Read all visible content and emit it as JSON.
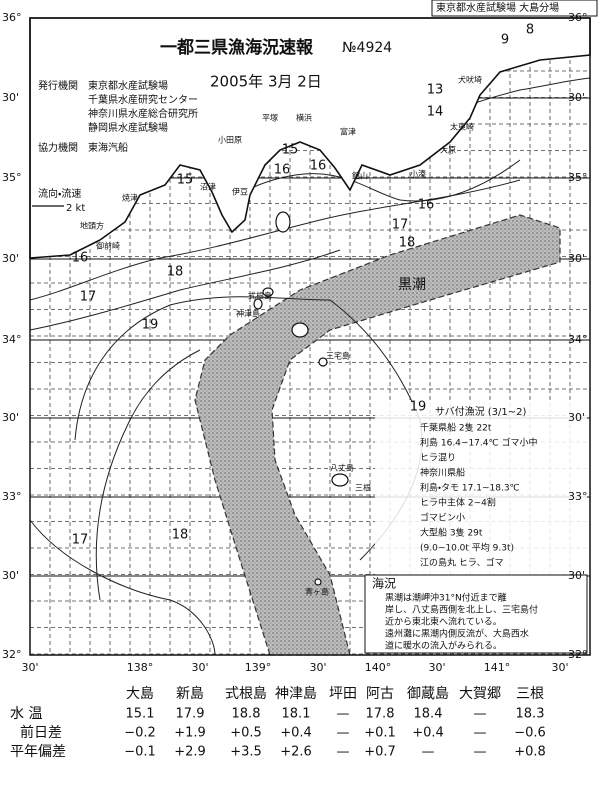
{
  "header": {
    "title": "一都三県漁海況速報",
    "issue": "№4924",
    "date": "2005年 3月 2日",
    "branch": "東京都水産試験場 大島分場"
  },
  "publishers": {
    "label": "発行機関",
    "items": [
      "東京都水産試験場",
      "千葉県水産研究センター",
      "神奈川県水産総合研究所",
      "静岡県水産試験場"
    ],
    "coop_label": "協力機関",
    "coop": "東海汽船"
  },
  "current_legend": {
    "label": "流向・流速",
    "speed": "2 kt"
  },
  "latitude_labels": [
    "36°",
    "30'",
    "35°",
    "30'",
    "34°",
    "30'",
    "33°",
    "30'",
    "32°"
  ],
  "longitude_labels": [
    "30'",
    "138°",
    "30'",
    "139°",
    "30'",
    "140°",
    "30'",
    "141°",
    "30'"
  ],
  "isotherms": [
    15,
    16,
    16,
    15,
    16,
    17,
    18,
    18,
    17,
    16,
    19,
    19,
    17,
    18,
    14,
    13,
    9,
    8
  ],
  "places": [
    "平塚",
    "横浜",
    "富津",
    "小田原",
    "館山",
    "太東崎",
    "大原",
    "犬吠埼",
    "小湊",
    "沼津",
    "伊豆",
    "焼津",
    "地頭方",
    "御前崎",
    "式根島",
    "神津島",
    "三宅島",
    "八丈島",
    "三根",
    "青ヶ島"
  ],
  "kuroshio": "黒潮",
  "catch_report": {
    "title": "サバ付漁況 (3/1~2)",
    "lines": [
      "千葉県船 2隻 22t",
      "利島 16.4~17.4℃ ゴマ小中",
      "ヒラ混り",
      "神奈川県船",
      "利島・タモ 17.1~18.3℃",
      "ヒラ中主体 2~4割",
      "ゴマビン小",
      "大型船 3隻 29t",
      "(9.0~10.0t 平均 9.3t)",
      "江の島丸 ヒラ、ゴマ"
    ]
  },
  "sea_condition": {
    "title": "海況",
    "lines": [
      "黒潮は潮岬沖31°N付近まで離",
      "岸し、八丈島西側を北上し、三宅島付",
      "近から東北東へ流れている。",
      "遠州灘に黒潮内側反流が、大島西水",
      "道に暖水の流入がみられる。"
    ]
  },
  "table": {
    "columns": [
      "大島",
      "新島",
      "式根島",
      "神津島",
      "坪田",
      "阿古",
      "御蔵島",
      "大賀郷",
      "三根"
    ],
    "rows": [
      {
        "label": "水 温",
        "values": [
          "15.1",
          "17.9",
          "18.8",
          "18.1",
          "—",
          "17.8",
          "18.4",
          "—",
          "18.3"
        ]
      },
      {
        "label": "前日差",
        "values": [
          "−0.2",
          "+1.9",
          "+0.5",
          "+0.4",
          "—",
          "+0.1",
          "+0.4",
          "—",
          "−0.6"
        ]
      },
      {
        "label": "平年偏差",
        "values": [
          "−0.1",
          "+2.9",
          "+3.5",
          "+2.6",
          "—",
          "+0.7",
          "—",
          "—",
          "+0.8"
        ]
      }
    ]
  }
}
